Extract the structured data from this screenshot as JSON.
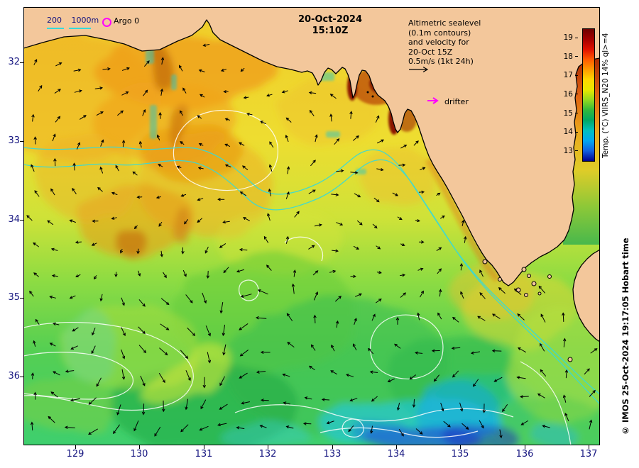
{
  "title": {
    "date": "20-Oct-2024",
    "time": "15:10Z"
  },
  "legend": {
    "depth_200": "200",
    "depth_1000": "1000m",
    "argo_label": "Argo 0",
    "drifter_label": "drifter"
  },
  "annotation": {
    "lines": [
      "Altimetric sealevel",
      "(0.1m contours)",
      "and velocity for",
      "20-Oct 15Z",
      "0.5m/s (1kt 24h)"
    ]
  },
  "colorbar": {
    "label": "Temp. (°C) VIIRS_N20 14% ql>=4",
    "ticks": [
      "19",
      "18",
      "17",
      "16",
      "15",
      "14",
      "13"
    ],
    "colors": [
      "#6d0000",
      "#a50000",
      "#e01000",
      "#ff5a00",
      "#ff9c00",
      "#ffd800",
      "#e8e800",
      "#90d820",
      "#30b83c",
      "#00a865",
      "#00c0c0",
      "#00a8f0",
      "#1060e0",
      "#000090"
    ]
  },
  "credit": "© IMOS 25-Oct-2024 19:17:05 Hobart time",
  "axes": {
    "x_ticks": [
      "129",
      "130",
      "131",
      "132",
      "133",
      "134",
      "135",
      "136",
      "137"
    ],
    "y_ticks": [
      "32",
      "33",
      "34",
      "35",
      "36"
    ]
  },
  "map_colors": {
    "land": "#f3c79b",
    "contour": "#ffffff",
    "bathy": "#35dada",
    "arrow": "#000000",
    "drifter": "#ff00ff"
  }
}
